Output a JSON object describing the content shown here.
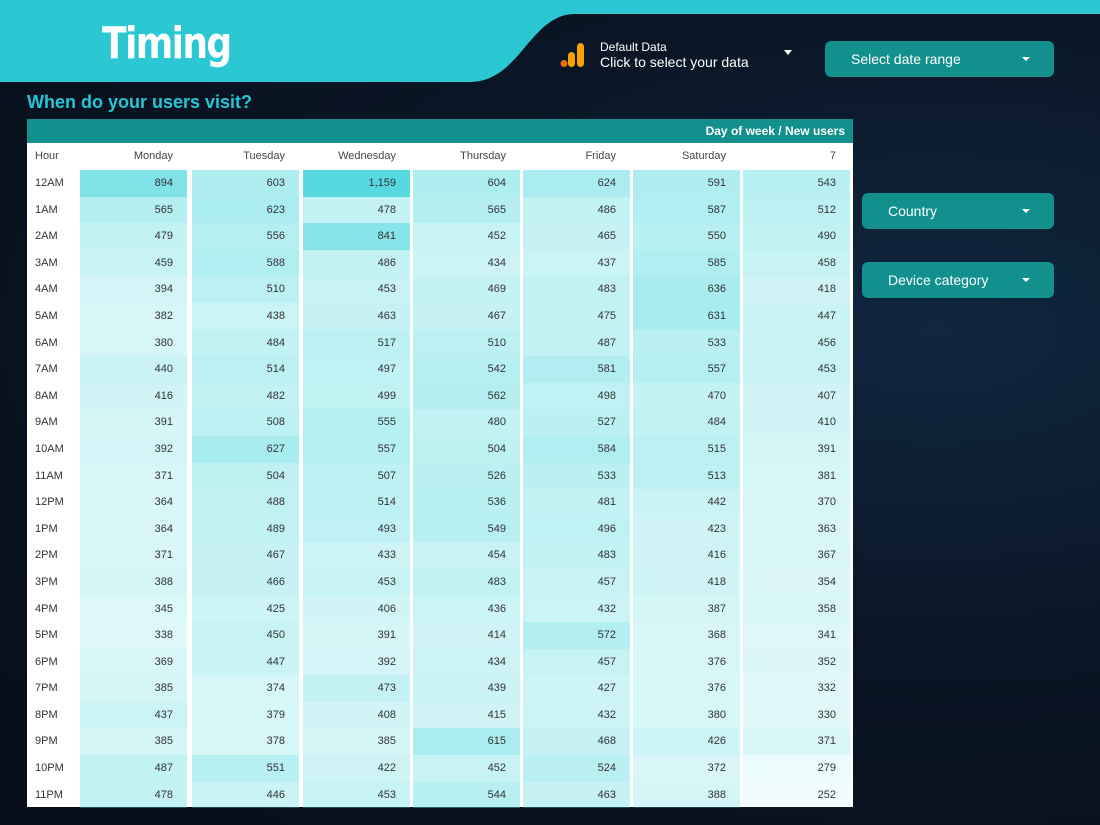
{
  "header": {
    "title": "Timing"
  },
  "data_source": {
    "name": "Default Data",
    "action": "Click to select your data",
    "icon": "analytics-bars-icon",
    "icon_colors": [
      "#f7a400",
      "#e8710a"
    ]
  },
  "controls": {
    "date_range": "Select date range",
    "country": "Country",
    "device_category": "Device category"
  },
  "section": {
    "title": "When do your users visit?"
  },
  "pivot": {
    "header_label": "Day of week / New users",
    "row_dimension": "Hour",
    "columns": [
      "Monday",
      "Tuesday",
      "Wednesday",
      "Thursday",
      "Friday",
      "Saturday",
      "7"
    ],
    "heat_color": "#4fd8df",
    "rows": [
      {
        "hour": "12AM",
        "values": [
          "894",
          "603",
          "1,159",
          "604",
          "624",
          "591",
          "543"
        ]
      },
      {
        "hour": "1AM",
        "values": [
          "565",
          "623",
          "478",
          "565",
          "486",
          "587",
          "512"
        ]
      },
      {
        "hour": "2AM",
        "values": [
          "479",
          "556",
          "841",
          "452",
          "465",
          "550",
          "490"
        ]
      },
      {
        "hour": "3AM",
        "values": [
          "459",
          "588",
          "486",
          "434",
          "437",
          "585",
          "458"
        ]
      },
      {
        "hour": "4AM",
        "values": [
          "394",
          "510",
          "453",
          "469",
          "483",
          "636",
          "418"
        ]
      },
      {
        "hour": "5AM",
        "values": [
          "382",
          "438",
          "463",
          "467",
          "475",
          "631",
          "447"
        ]
      },
      {
        "hour": "6AM",
        "values": [
          "380",
          "484",
          "517",
          "510",
          "487",
          "533",
          "456"
        ]
      },
      {
        "hour": "7AM",
        "values": [
          "440",
          "514",
          "497",
          "542",
          "581",
          "557",
          "453"
        ]
      },
      {
        "hour": "8AM",
        "values": [
          "416",
          "482",
          "499",
          "562",
          "498",
          "470",
          "407"
        ]
      },
      {
        "hour": "9AM",
        "values": [
          "391",
          "508",
          "555",
          "480",
          "527",
          "484",
          "410"
        ]
      },
      {
        "hour": "10AM",
        "values": [
          "392",
          "627",
          "557",
          "504",
          "584",
          "515",
          "391"
        ]
      },
      {
        "hour": "11AM",
        "values": [
          "371",
          "504",
          "507",
          "526",
          "533",
          "513",
          "381"
        ]
      },
      {
        "hour": "12PM",
        "values": [
          "364",
          "488",
          "514",
          "536",
          "481",
          "442",
          "370"
        ]
      },
      {
        "hour": "1PM",
        "values": [
          "364",
          "489",
          "493",
          "549",
          "496",
          "423",
          "363"
        ]
      },
      {
        "hour": "2PM",
        "values": [
          "371",
          "467",
          "433",
          "454",
          "483",
          "416",
          "367"
        ]
      },
      {
        "hour": "3PM",
        "values": [
          "388",
          "466",
          "453",
          "483",
          "457",
          "418",
          "354"
        ]
      },
      {
        "hour": "4PM",
        "values": [
          "345",
          "425",
          "406",
          "436",
          "432",
          "387",
          "358"
        ]
      },
      {
        "hour": "5PM",
        "values": [
          "338",
          "450",
          "391",
          "414",
          "572",
          "368",
          "341"
        ]
      },
      {
        "hour": "6PM",
        "values": [
          "369",
          "447",
          "392",
          "434",
          "457",
          "376",
          "352"
        ]
      },
      {
        "hour": "7PM",
        "values": [
          "385",
          "374",
          "473",
          "439",
          "427",
          "376",
          "332"
        ]
      },
      {
        "hour": "8PM",
        "values": [
          "437",
          "379",
          "408",
          "415",
          "432",
          "380",
          "330"
        ]
      },
      {
        "hour": "9PM",
        "values": [
          "385",
          "378",
          "385",
          "615",
          "468",
          "426",
          "371"
        ]
      },
      {
        "hour": "10PM",
        "values": [
          "487",
          "551",
          "422",
          "452",
          "524",
          "372",
          "279"
        ]
      },
      {
        "hour": "11PM",
        "values": [
          "478",
          "446",
          "453",
          "544",
          "463",
          "388",
          "252"
        ]
      }
    ]
  }
}
